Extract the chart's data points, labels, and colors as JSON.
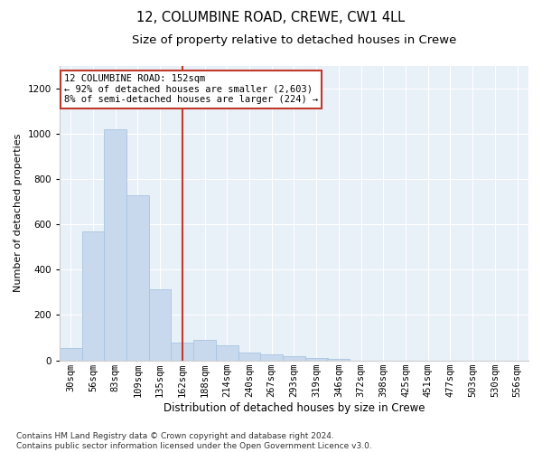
{
  "title": "12, COLUMBINE ROAD, CREWE, CW1 4LL",
  "subtitle": "Size of property relative to detached houses in Crewe",
  "xlabel": "Distribution of detached houses by size in Crewe",
  "ylabel": "Number of detached properties",
  "bar_labels": [
    "30sqm",
    "56sqm",
    "83sqm",
    "109sqm",
    "135sqm",
    "162sqm",
    "188sqm",
    "214sqm",
    "240sqm",
    "267sqm",
    "293sqm",
    "319sqm",
    "346sqm",
    "372sqm",
    "398sqm",
    "425sqm",
    "451sqm",
    "477sqm",
    "503sqm",
    "530sqm",
    "556sqm"
  ],
  "bar_values": [
    55,
    570,
    1020,
    730,
    315,
    80,
    90,
    65,
    35,
    25,
    18,
    10,
    8,
    0,
    0,
    0,
    0,
    0,
    0,
    0,
    0
  ],
  "bar_color": "#c8d9ee",
  "bar_edge_color": "#a8c4e0",
  "vline_x": 5.0,
  "vline_color": "#c0392b",
  "annotation_text": "12 COLUMBINE ROAD: 152sqm\n← 92% of detached houses are smaller (2,603)\n8% of semi-detached houses are larger (224) →",
  "annotation_box_color": "white",
  "annotation_box_edge_color": "#c0392b",
  "ylim": [
    0,
    1300
  ],
  "yticks": [
    0,
    200,
    400,
    600,
    800,
    1000,
    1200
  ],
  "background_color": "#e8f0f8",
  "footer_text": "Contains HM Land Registry data © Crown copyright and database right 2024.\nContains public sector information licensed under the Open Government Licence v3.0.",
  "title_fontsize": 10.5,
  "subtitle_fontsize": 9.5,
  "xlabel_fontsize": 8.5,
  "ylabel_fontsize": 8,
  "tick_fontsize": 7.5,
  "footer_fontsize": 6.5,
  "annot_fontsize": 7.5
}
